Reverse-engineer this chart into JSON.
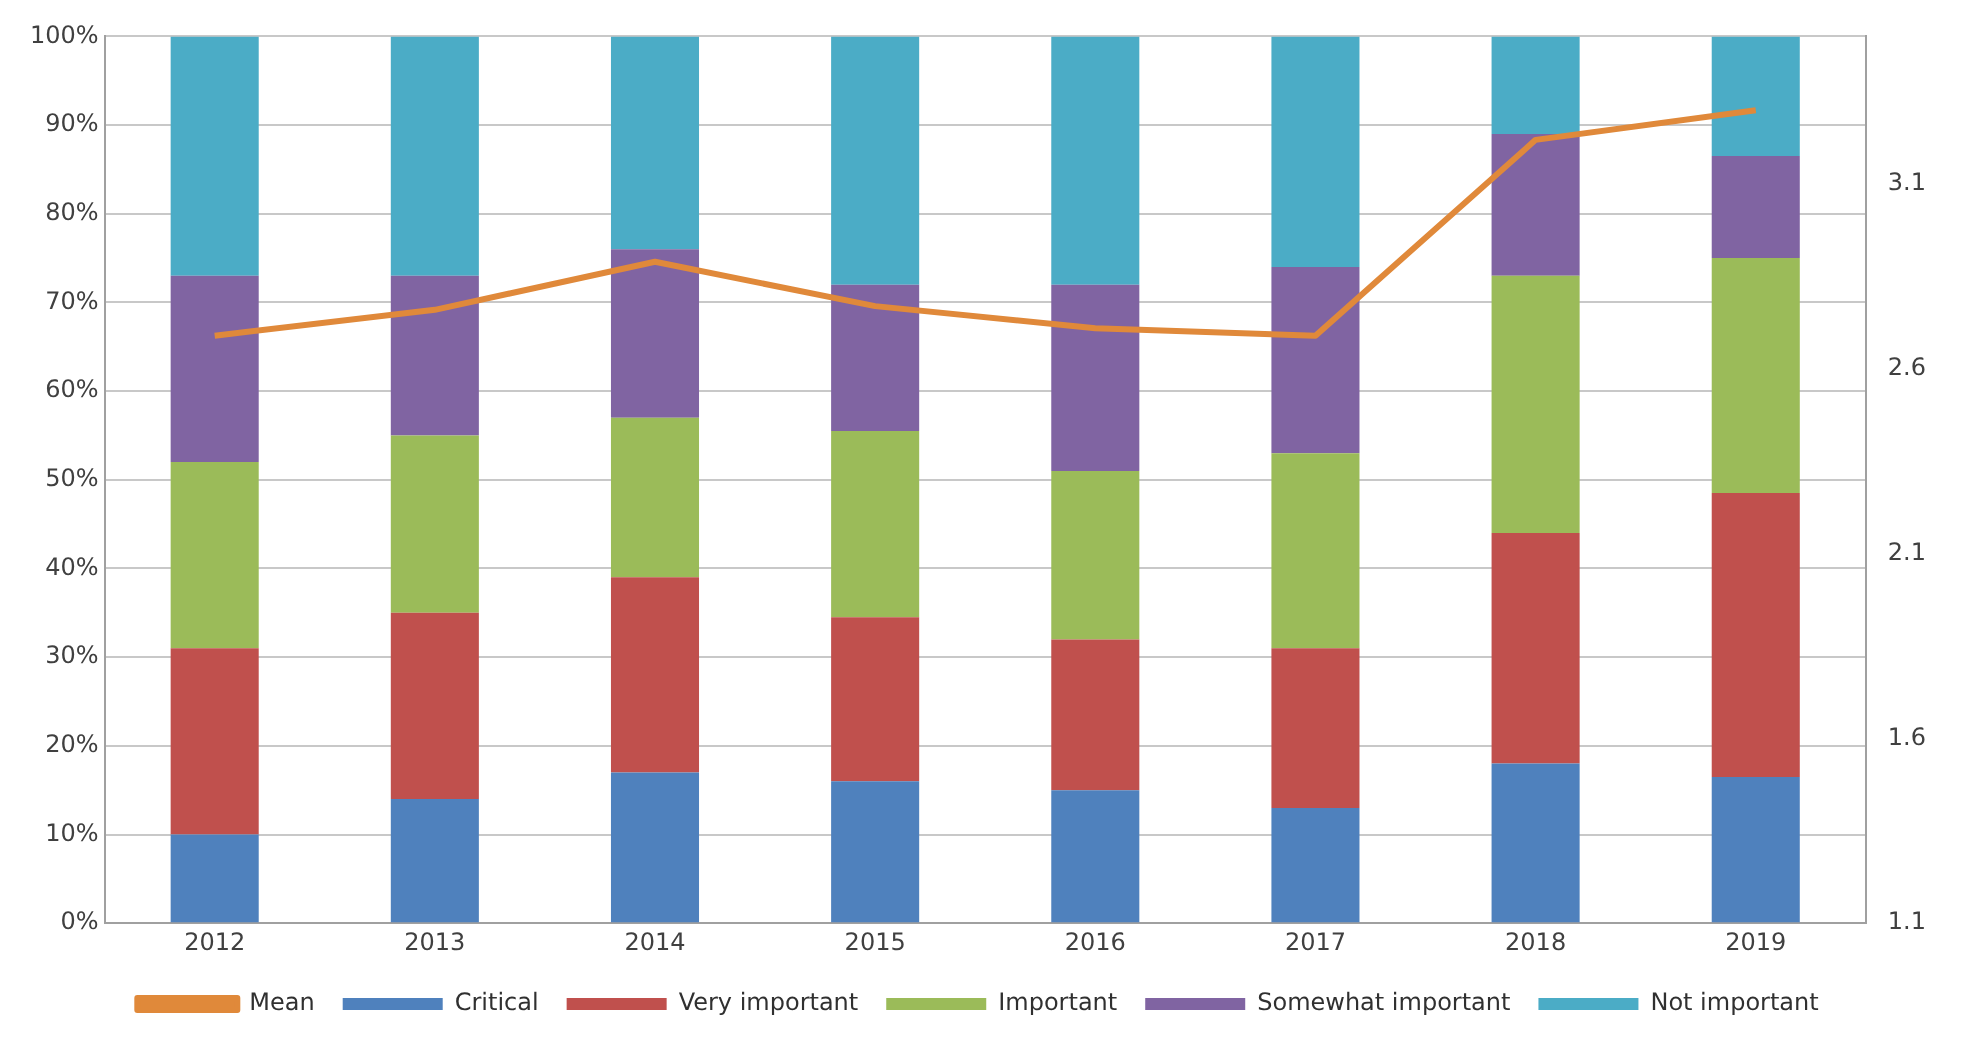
{
  "chart_data": {
    "type": "bar",
    "stacked": true,
    "categories": [
      "2012",
      "2013",
      "2014",
      "2015",
      "2016",
      "2017",
      "2018",
      "2019"
    ],
    "series": [
      {
        "name": "Critical",
        "color": "#4f81bd",
        "values": [
          10,
          14,
          17,
          16,
          15,
          13,
          18,
          16.5
        ]
      },
      {
        "name": "Very important",
        "color": "#c0504d",
        "values": [
          21,
          21,
          22,
          18.5,
          17,
          18,
          26,
          32
        ]
      },
      {
        "name": "Important",
        "color": "#9bbb59",
        "values": [
          21,
          20,
          18,
          21,
          19,
          22,
          29,
          26.5
        ]
      },
      {
        "name": "Somewhat important",
        "color": "#8064a2",
        "values": [
          21,
          18,
          19,
          16.5,
          21,
          21,
          16,
          11.5
        ]
      },
      {
        "name": "Not important",
        "color": "#4bacc6",
        "values": [
          27,
          27,
          24,
          28,
          28,
          26,
          11,
          13.5
        ]
      },
      {
        "name": "Mean",
        "type": "line",
        "axis": "y2",
        "color": "#e0893a",
        "values": [
          2.69,
          2.76,
          2.89,
          2.77,
          2.71,
          2.69,
          3.22,
          3.3
        ]
      }
    ],
    "ylim": [
      0,
      100
    ],
    "yticks": [
      {
        "value": 0,
        "label": "0%"
      },
      {
        "value": 10,
        "label": "10%"
      },
      {
        "value": 20,
        "label": "20%"
      },
      {
        "value": 30,
        "label": "30%"
      },
      {
        "value": 40,
        "label": "40%"
      },
      {
        "value": 50,
        "label": "50%"
      },
      {
        "value": 60,
        "label": "60%"
      },
      {
        "value": 70,
        "label": "70%"
      },
      {
        "value": 80,
        "label": "80%"
      },
      {
        "value": 90,
        "label": "90%"
      },
      {
        "value": 100,
        "label": "100%"
      }
    ],
    "y2lim": [
      1.1,
      3.5
    ],
    "y2ticks": [
      1.1,
      1.6,
      2.1,
      2.6,
      3.1
    ],
    "grid": "y",
    "legend": "bottom",
    "marker": "none"
  }
}
